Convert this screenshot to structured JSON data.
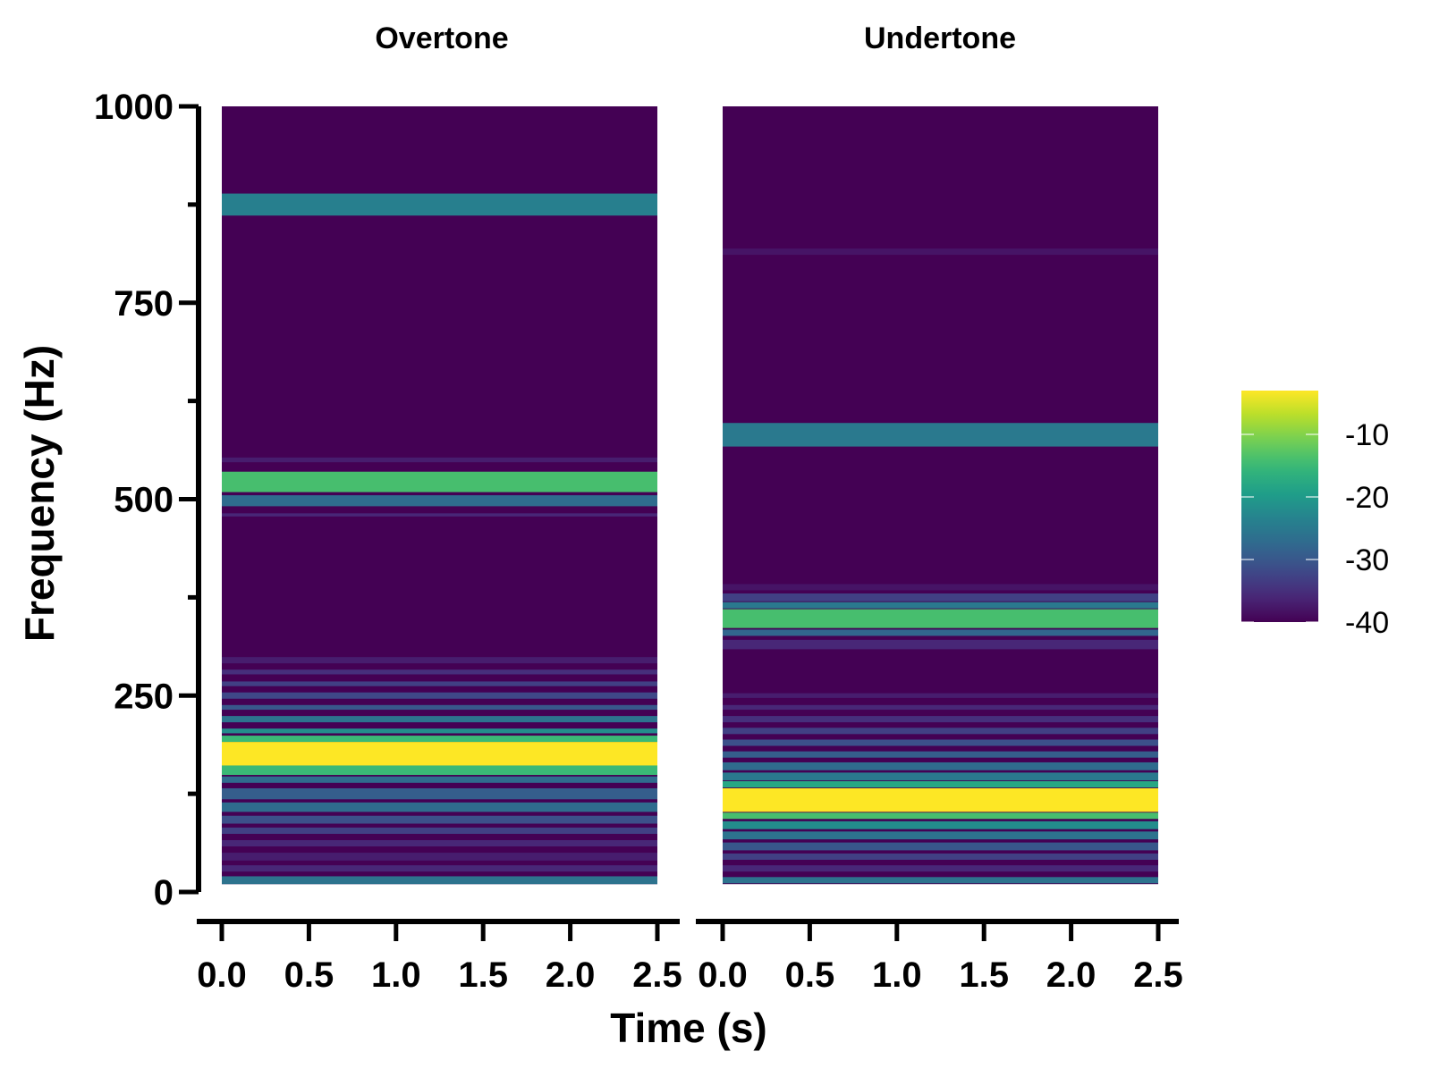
{
  "chart_data": {
    "type": "heatmap",
    "ylabel": "Frequency (Hz)",
    "xlabel": "Time (s)",
    "y_range": [
      0,
      1000
    ],
    "y_ticks_major": [
      0,
      250,
      500,
      750,
      1000
    ],
    "y_ticks_minor": [
      125,
      375,
      625,
      875
    ],
    "y_tick_labels": [
      "0",
      "250",
      "500",
      "750",
      "1000"
    ],
    "data_freq_range": [
      10,
      1000
    ],
    "x_range": [
      0,
      2.5
    ],
    "x_ticks": [
      0,
      0.5,
      1.0,
      1.5,
      2.0,
      2.5
    ],
    "x_tick_labels": [
      "0.0",
      "0.5",
      "1.0",
      "1.5",
      "2.0",
      "2.5"
    ],
    "colormap": "viridis",
    "colorbar": {
      "range": [
        -40,
        -3
      ],
      "ticks": [
        -10,
        -20,
        -30,
        -40
      ],
      "tick_labels": [
        "-10",
        "-20",
        "-30",
        "-40"
      ]
    },
    "panels": [
      {
        "title": "Overtone",
        "bands": [
          {
            "center": 875,
            "width": 28,
            "db": -24
          },
          {
            "center": 550,
            "width": 6,
            "db": -37
          },
          {
            "center": 522,
            "width": 26,
            "db": -14
          },
          {
            "center": 498,
            "width": 14,
            "db": -27
          },
          {
            "center": 480,
            "width": 4,
            "db": -36
          },
          {
            "center": 295,
            "width": 8,
            "db": -37
          },
          {
            "center": 280,
            "width": 6,
            "db": -35
          },
          {
            "center": 265,
            "width": 6,
            "db": -33
          },
          {
            "center": 250,
            "width": 8,
            "db": -32
          },
          {
            "center": 235,
            "width": 6,
            "db": -30
          },
          {
            "center": 220,
            "width": 8,
            "db": -26
          },
          {
            "center": 205,
            "width": 6,
            "db": -22
          },
          {
            "center": 195,
            "width": 8,
            "db": -15
          },
          {
            "center": 176,
            "width": 30,
            "db": -3
          },
          {
            "center": 155,
            "width": 12,
            "db": -15
          },
          {
            "center": 143,
            "width": 8,
            "db": -27
          },
          {
            "center": 125,
            "width": 14,
            "db": -29
          },
          {
            "center": 108,
            "width": 12,
            "db": -27
          },
          {
            "center": 92,
            "width": 10,
            "db": -31
          },
          {
            "center": 78,
            "width": 8,
            "db": -33
          },
          {
            "center": 62,
            "width": 8,
            "db": -36
          },
          {
            "center": 45,
            "width": 10,
            "db": -37
          },
          {
            "center": 30,
            "width": 8,
            "db": -36
          },
          {
            "center": 15,
            "width": 10,
            "db": -26
          }
        ]
      },
      {
        "title": "Undertone",
        "bands": [
          {
            "center": 815,
            "width": 8,
            "db": -38
          },
          {
            "center": 582,
            "width": 30,
            "db": -25
          },
          {
            "center": 388,
            "width": 8,
            "db": -38
          },
          {
            "center": 375,
            "width": 10,
            "db": -33
          },
          {
            "center": 365,
            "width": 8,
            "db": -25
          },
          {
            "center": 348,
            "width": 24,
            "db": -14
          },
          {
            "center": 330,
            "width": 8,
            "db": -28
          },
          {
            "center": 315,
            "width": 12,
            "db": -36
          },
          {
            "center": 250,
            "width": 6,
            "db": -37
          },
          {
            "center": 235,
            "width": 6,
            "db": -36
          },
          {
            "center": 220,
            "width": 8,
            "db": -35
          },
          {
            "center": 205,
            "width": 8,
            "db": -33
          },
          {
            "center": 190,
            "width": 8,
            "db": -31
          },
          {
            "center": 175,
            "width": 8,
            "db": -29
          },
          {
            "center": 160,
            "width": 10,
            "db": -27
          },
          {
            "center": 147,
            "width": 10,
            "db": -25
          },
          {
            "center": 137,
            "width": 8,
            "db": -18
          },
          {
            "center": 117,
            "width": 30,
            "db": -3
          },
          {
            "center": 97,
            "width": 8,
            "db": -14
          },
          {
            "center": 85,
            "width": 10,
            "db": -22
          },
          {
            "center": 72,
            "width": 10,
            "db": -26
          },
          {
            "center": 58,
            "width": 10,
            "db": -30
          },
          {
            "center": 45,
            "width": 8,
            "db": -33
          },
          {
            "center": 30,
            "width": 8,
            "db": -36
          },
          {
            "center": 15,
            "width": 8,
            "db": -26
          }
        ]
      }
    ]
  }
}
